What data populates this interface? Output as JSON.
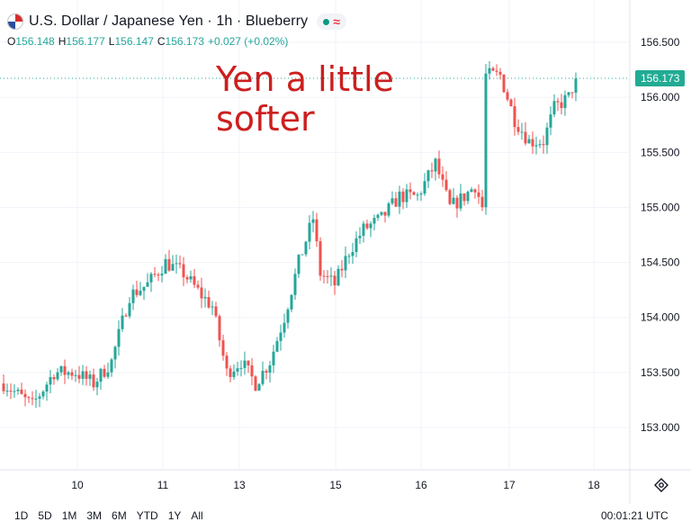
{
  "header": {
    "title": "U.S. Dollar / Japanese Yen · 1h · Blueberry",
    "flag_icon": "us-japan-flag-icon",
    "status_icon": "wave-icon",
    "status_symbol": "≈"
  },
  "ohlc": {
    "open_label": "O",
    "open": "156.148",
    "high_label": "H",
    "high": "156.177",
    "low_label": "L",
    "low": "156.147",
    "close_label": "C",
    "close": "156.173",
    "change": "+0.027 (+0.02%)"
  },
  "annotation": "Yen a little softer",
  "current_price": "156.173",
  "time_ranges": [
    "1D",
    "5D",
    "1M",
    "3M",
    "6M",
    "YTD",
    "1Y",
    "All"
  ],
  "clock": "00:01:21 UTC",
  "colors": {
    "up": "#26a69a",
    "down": "#ef5350",
    "accent_text": "#cc1f1f",
    "badge": "#22ab94"
  },
  "chart_data": {
    "type": "candlestick",
    "ylim": [
      152.9,
      156.8
    ],
    "y_ticks": [
      "156.500",
      "156.000",
      "155.500",
      "155.000",
      "154.500",
      "154.000",
      "153.500",
      "153.000"
    ],
    "x_ticks": [
      "10",
      "11",
      "13",
      "15",
      "16",
      "17",
      "18"
    ],
    "grid": true,
    "anchors": [
      [
        0,
        153.4
      ],
      [
        8,
        153.2
      ],
      [
        14,
        153.5
      ],
      [
        20,
        153.5
      ],
      [
        25,
        153.4
      ],
      [
        30,
        153.6
      ],
      [
        35,
        154.2
      ],
      [
        40,
        154.3
      ],
      [
        45,
        154.5
      ],
      [
        50,
        154.4
      ],
      [
        55,
        154.2
      ],
      [
        58,
        154.1
      ],
      [
        62,
        153.5
      ],
      [
        66,
        153.6
      ],
      [
        70,
        153.4
      ],
      [
        74,
        153.6
      ],
      [
        78,
        154.0
      ],
      [
        82,
        154.5
      ],
      [
        86,
        154.9
      ],
      [
        88,
        154.4
      ],
      [
        92,
        154.3
      ],
      [
        96,
        154.6
      ],
      [
        100,
        154.8
      ],
      [
        105,
        154.9
      ],
      [
        110,
        155.1
      ],
      [
        115,
        155.1
      ],
      [
        120,
        155.4
      ],
      [
        124,
        155.0
      ],
      [
        128,
        155.1
      ],
      [
        131,
        155.2
      ],
      [
        133,
        155.0
      ],
      [
        134,
        156.2
      ],
      [
        138,
        156.2
      ],
      [
        142,
        155.8
      ],
      [
        146,
        155.6
      ],
      [
        150,
        155.6
      ],
      [
        153,
        155.9
      ],
      [
        157,
        156.0
      ],
      [
        159,
        156.17
      ]
    ]
  }
}
